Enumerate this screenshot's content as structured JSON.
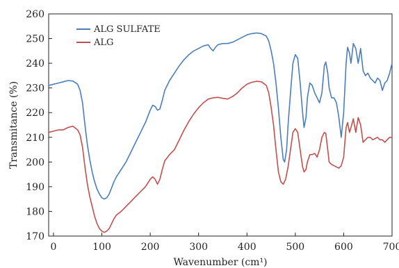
{
  "chart_data": {
    "type": "line",
    "xlabel": "Wavenumber (cm¹)",
    "ylabel": "Transmitance (%)",
    "xlim": [
      -10,
      700
    ],
    "ylim": [
      170,
      260
    ],
    "x_ticks": [
      0,
      100,
      200,
      300,
      400,
      500,
      600,
      700
    ],
    "y_ticks": [
      170,
      180,
      190,
      200,
      210,
      220,
      230,
      240,
      250,
      260
    ],
    "grid": false,
    "legend_position": "top-left",
    "series": [
      {
        "name": "ALG SULFATE",
        "color": "#4a7ebb",
        "points": [
          [
            -10,
            231
          ],
          [
            0,
            231.5
          ],
          [
            10,
            232
          ],
          [
            20,
            232.5
          ],
          [
            30,
            233
          ],
          [
            40,
            232.8
          ],
          [
            50,
            231.5
          ],
          [
            55,
            229
          ],
          [
            60,
            224
          ],
          [
            65,
            215
          ],
          [
            70,
            207
          ],
          [
            75,
            201
          ],
          [
            80,
            196
          ],
          [
            85,
            192
          ],
          [
            90,
            189
          ],
          [
            95,
            187
          ],
          [
            100,
            185.5
          ],
          [
            105,
            185
          ],
          [
            110,
            185.5
          ],
          [
            115,
            187
          ],
          [
            120,
            189.5
          ],
          [
            125,
            192
          ],
          [
            130,
            194
          ],
          [
            140,
            197
          ],
          [
            150,
            200
          ],
          [
            160,
            204
          ],
          [
            170,
            208
          ],
          [
            180,
            212
          ],
          [
            190,
            216
          ],
          [
            200,
            221
          ],
          [
            205,
            223
          ],
          [
            210,
            222.5
          ],
          [
            215,
            221
          ],
          [
            220,
            221.5
          ],
          [
            225,
            225
          ],
          [
            230,
            229
          ],
          [
            240,
            233
          ],
          [
            250,
            236
          ],
          [
            260,
            239
          ],
          [
            270,
            241.5
          ],
          [
            280,
            243.5
          ],
          [
            290,
            245
          ],
          [
            300,
            246
          ],
          [
            310,
            247
          ],
          [
            320,
            247.5
          ],
          [
            325,
            246
          ],
          [
            330,
            245
          ],
          [
            335,
            246.5
          ],
          [
            340,
            247.5
          ],
          [
            350,
            248
          ],
          [
            360,
            248
          ],
          [
            370,
            248.5
          ],
          [
            380,
            249.5
          ],
          [
            390,
            250.5
          ],
          [
            400,
            251.5
          ],
          [
            410,
            252
          ],
          [
            420,
            252.3
          ],
          [
            430,
            252
          ],
          [
            440,
            251
          ],
          [
            445,
            249
          ],
          [
            450,
            245
          ],
          [
            455,
            240
          ],
          [
            460,
            232
          ],
          [
            465,
            222
          ],
          [
            470,
            210
          ],
          [
            475,
            201
          ],
          [
            478,
            200
          ],
          [
            482,
            205
          ],
          [
            485,
            215
          ],
          [
            490,
            228
          ],
          [
            495,
            240
          ],
          [
            500,
            243.5
          ],
          [
            505,
            242
          ],
          [
            510,
            232
          ],
          [
            515,
            220
          ],
          [
            518,
            214
          ],
          [
            522,
            218
          ],
          [
            525,
            226
          ],
          [
            530,
            232
          ],
          [
            535,
            231
          ],
          [
            540,
            228
          ],
          [
            545,
            226
          ],
          [
            550,
            224
          ],
          [
            555,
            228
          ],
          [
            560,
            239
          ],
          [
            563,
            240.5
          ],
          [
            567,
            236
          ],
          [
            570,
            230
          ],
          [
            575,
            226
          ],
          [
            580,
            226
          ],
          [
            585,
            224
          ],
          [
            590,
            218
          ],
          [
            595,
            210
          ],
          [
            600,
            220
          ],
          [
            605,
            240
          ],
          [
            608,
            246.5
          ],
          [
            612,
            244
          ],
          [
            615,
            240
          ],
          [
            620,
            248
          ],
          [
            625,
            246
          ],
          [
            630,
            240
          ],
          [
            635,
            246
          ],
          [
            640,
            237
          ],
          [
            645,
            235
          ],
          [
            650,
            236
          ],
          [
            655,
            234
          ],
          [
            660,
            233
          ],
          [
            665,
            232
          ],
          [
            670,
            234
          ],
          [
            675,
            233
          ],
          [
            680,
            229
          ],
          [
            685,
            232
          ],
          [
            690,
            233
          ],
          [
            695,
            236
          ],
          [
            700,
            240
          ]
        ]
      },
      {
        "name": "ALG",
        "color": "#c0504d",
        "points": [
          [
            -10,
            212
          ],
          [
            0,
            212.5
          ],
          [
            10,
            213
          ],
          [
            20,
            213
          ],
          [
            30,
            214
          ],
          [
            40,
            214.5
          ],
          [
            50,
            213
          ],
          [
            55,
            211
          ],
          [
            60,
            206
          ],
          [
            65,
            198
          ],
          [
            70,
            191
          ],
          [
            75,
            186
          ],
          [
            80,
            182
          ],
          [
            85,
            178
          ],
          [
            90,
            175
          ],
          [
            95,
            173
          ],
          [
            100,
            172
          ],
          [
            105,
            171.5
          ],
          [
            110,
            172
          ],
          [
            115,
            173
          ],
          [
            120,
            175
          ],
          [
            125,
            177
          ],
          [
            130,
            178.5
          ],
          [
            140,
            180
          ],
          [
            150,
            182
          ],
          [
            160,
            184
          ],
          [
            170,
            186
          ],
          [
            180,
            188
          ],
          [
            190,
            190
          ],
          [
            200,
            193
          ],
          [
            205,
            194
          ],
          [
            210,
            193
          ],
          [
            215,
            191
          ],
          [
            220,
            193
          ],
          [
            225,
            197
          ],
          [
            230,
            200.5
          ],
          [
            240,
            203
          ],
          [
            250,
            205
          ],
          [
            260,
            209
          ],
          [
            270,
            213
          ],
          [
            280,
            216.5
          ],
          [
            290,
            219.5
          ],
          [
            300,
            222
          ],
          [
            310,
            224
          ],
          [
            320,
            225.5
          ],
          [
            330,
            226
          ],
          [
            340,
            226.2
          ],
          [
            350,
            225.8
          ],
          [
            360,
            225.5
          ],
          [
            370,
            226.5
          ],
          [
            380,
            228
          ],
          [
            390,
            230
          ],
          [
            400,
            231.5
          ],
          [
            410,
            232.3
          ],
          [
            420,
            232.7
          ],
          [
            430,
            232.5
          ],
          [
            440,
            231
          ],
          [
            445,
            228
          ],
          [
            450,
            222
          ],
          [
            455,
            215
          ],
          [
            460,
            205
          ],
          [
            465,
            196
          ],
          [
            470,
            192
          ],
          [
            475,
            191
          ],
          [
            480,
            193
          ],
          [
            485,
            198
          ],
          [
            490,
            205
          ],
          [
            495,
            212
          ],
          [
            500,
            213.5
          ],
          [
            505,
            212
          ],
          [
            510,
            205
          ],
          [
            515,
            198
          ],
          [
            518,
            196
          ],
          [
            522,
            197
          ],
          [
            525,
            200
          ],
          [
            530,
            203
          ],
          [
            535,
            203
          ],
          [
            540,
            203.5
          ],
          [
            545,
            202
          ],
          [
            550,
            205
          ],
          [
            555,
            210
          ],
          [
            560,
            212
          ],
          [
            563,
            211.5
          ],
          [
            567,
            205
          ],
          [
            570,
            200
          ],
          [
            575,
            199
          ],
          [
            580,
            198.5
          ],
          [
            585,
            198
          ],
          [
            590,
            197.5
          ],
          [
            595,
            198.5
          ],
          [
            600,
            202
          ],
          [
            605,
            214
          ],
          [
            608,
            216
          ],
          [
            612,
            212
          ],
          [
            615,
            214
          ],
          [
            620,
            217.5
          ],
          [
            625,
            212
          ],
          [
            630,
            218
          ],
          [
            635,
            215
          ],
          [
            640,
            208
          ],
          [
            645,
            209
          ],
          [
            650,
            210
          ],
          [
            655,
            210
          ],
          [
            660,
            209
          ],
          [
            665,
            209.5
          ],
          [
            670,
            210
          ],
          [
            675,
            209
          ],
          [
            680,
            209
          ],
          [
            685,
            208
          ],
          [
            690,
            209
          ],
          [
            695,
            210
          ],
          [
            700,
            210
          ]
        ]
      }
    ]
  }
}
